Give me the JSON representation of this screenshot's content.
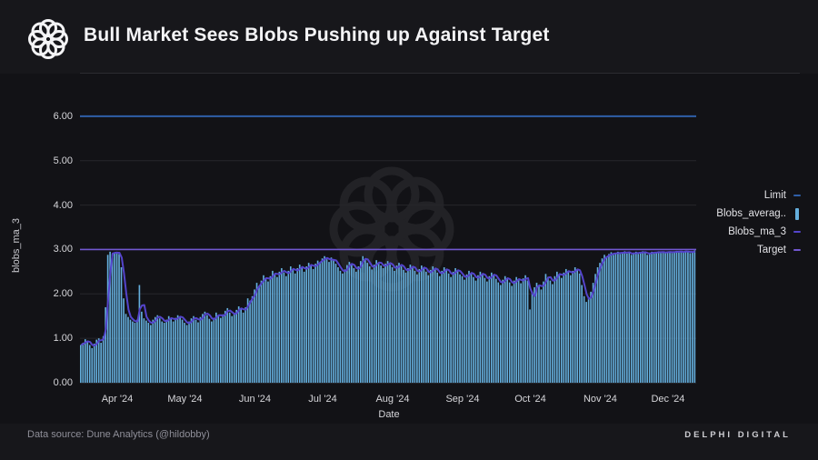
{
  "header": {
    "title": "Bull Market Sees Blobs Pushing up Against Target"
  },
  "footer": {
    "source": "Data source: Dune Analytics (@hildobby)",
    "brand": "DELPHI DIGITAL"
  },
  "colors": {
    "background": "#121216",
    "bar": "#64aedc",
    "ma_line": "#5444cb",
    "limit_line": "#2f5fa8",
    "target_line": "#7157cf",
    "gridline": "#26262b"
  },
  "legend": {
    "items": [
      {
        "label": "Limit",
        "marker": "dash",
        "color": "#2f5fa8"
      },
      {
        "label": "Blobs_averag..",
        "marker": "bar",
        "color": "#64aedc"
      },
      {
        "label": "Blobs_ma_3",
        "marker": "dash",
        "color": "#5444cb"
      },
      {
        "label": "Target",
        "marker": "dash",
        "color": "#7157cf"
      }
    ]
  },
  "chart_data": {
    "type": "bar",
    "title": "Bull Market Sees Blobs Pushing up Against Target",
    "xlabel": "Date",
    "ylabel": "blobs_ma_3",
    "ylim": [
      0,
      6.5
    ],
    "grid": true,
    "legend_position": "right",
    "yticks": [
      "0.00",
      "1.00",
      "2.00",
      "3.00",
      "4.00",
      "5.00",
      "6.00"
    ],
    "xticks": [
      "Apr '24",
      "May '24",
      "Jun '24",
      "Jul '24",
      "Aug '24",
      "Sep '24",
      "Oct '24",
      "Nov '24",
      "Dec '24"
    ],
    "xtick_day_index": [
      16,
      46,
      77,
      107,
      138,
      169,
      199,
      230,
      260
    ],
    "start_date": "2024-03-16",
    "limit_value": 6.0,
    "target_value": 3.0,
    "ma_window": 3,
    "series": [
      {
        "name": "Blobs_averag..",
        "type": "bar",
        "values": [
          0.85,
          0.9,
          0.98,
          0.92,
          0.85,
          0.78,
          0.88,
          0.97,
          1.0,
          0.9,
          1.05,
          1.7,
          2.88,
          2.95,
          2.9,
          2.93,
          2.95,
          2.9,
          2.6,
          1.9,
          1.55,
          1.48,
          1.42,
          1.38,
          1.35,
          1.42,
          2.2,
          1.6,
          1.45,
          1.4,
          1.35,
          1.3,
          1.42,
          1.48,
          1.52,
          1.45,
          1.38,
          1.35,
          1.42,
          1.5,
          1.44,
          1.38,
          1.46,
          1.52,
          1.48,
          1.42,
          1.35,
          1.3,
          1.38,
          1.45,
          1.5,
          1.42,
          1.36,
          1.48,
          1.55,
          1.6,
          1.52,
          1.44,
          1.38,
          1.46,
          1.58,
          1.52,
          1.46,
          1.54,
          1.62,
          1.68,
          1.58,
          1.5,
          1.56,
          1.64,
          1.72,
          1.66,
          1.58,
          1.7,
          1.9,
          1.85,
          1.95,
          2.1,
          2.25,
          2.18,
          2.3,
          2.42,
          2.35,
          2.28,
          2.4,
          2.52,
          2.45,
          2.38,
          2.5,
          2.58,
          2.48,
          2.4,
          2.52,
          2.62,
          2.55,
          2.46,
          2.58,
          2.66,
          2.58,
          2.5,
          2.62,
          2.7,
          2.64,
          2.56,
          2.68,
          2.75,
          2.7,
          2.8,
          2.85,
          2.78,
          2.72,
          2.82,
          2.76,
          2.68,
          2.6,
          2.52,
          2.46,
          2.55,
          2.65,
          2.72,
          2.66,
          2.58,
          2.5,
          2.62,
          2.74,
          2.85,
          2.78,
          2.7,
          2.62,
          2.55,
          2.66,
          2.76,
          2.7,
          2.64,
          2.58,
          2.68,
          2.74,
          2.66,
          2.6,
          2.52,
          2.64,
          2.7,
          2.62,
          2.54,
          2.48,
          2.58,
          2.66,
          2.6,
          2.52,
          2.44,
          2.56,
          2.64,
          2.58,
          2.5,
          2.42,
          2.54,
          2.62,
          2.56,
          2.48,
          2.4,
          2.52,
          2.6,
          2.54,
          2.46,
          2.38,
          2.5,
          2.58,
          2.52,
          2.44,
          2.4,
          2.32,
          2.44,
          2.52,
          2.46,
          2.38,
          2.3,
          2.42,
          2.5,
          2.44,
          2.36,
          2.28,
          2.4,
          2.48,
          2.42,
          2.34,
          2.26,
          2.2,
          2.32,
          2.4,
          2.34,
          2.26,
          2.18,
          2.3,
          2.38,
          2.32,
          2.24,
          2.35,
          2.42,
          2.3,
          1.65,
          2.05,
          2.15,
          2.25,
          2.18,
          2.1,
          2.28,
          2.45,
          2.38,
          2.3,
          2.22,
          2.4,
          2.5,
          2.44,
          2.36,
          2.48,
          2.56,
          2.5,
          2.42,
          2.52,
          2.6,
          2.54,
          2.46,
          2.2,
          1.95,
          1.82,
          1.9,
          2.05,
          2.25,
          2.45,
          2.6,
          2.7,
          2.8,
          2.88,
          2.82,
          2.9,
          2.94,
          2.88,
          2.92,
          2.95,
          2.9,
          2.93,
          2.96,
          2.91,
          2.94,
          2.88,
          2.92,
          2.95,
          2.9,
          2.94,
          2.96,
          2.92,
          2.88,
          2.93,
          2.95,
          2.91,
          2.94,
          2.96,
          2.92,
          2.95,
          2.93,
          2.94,
          2.96,
          2.92,
          2.95,
          2.97,
          2.93,
          2.96,
          2.94,
          2.97,
          2.95,
          2.92,
          2.96,
          2.98
        ]
      },
      {
        "name": "Blobs_ma_3",
        "type": "line",
        "derived": "3-day moving average of Blobs_averag.."
      },
      {
        "name": "Limit",
        "type": "hline",
        "value": 6.0
      },
      {
        "name": "Target",
        "type": "hline",
        "value": 3.0
      }
    ]
  }
}
